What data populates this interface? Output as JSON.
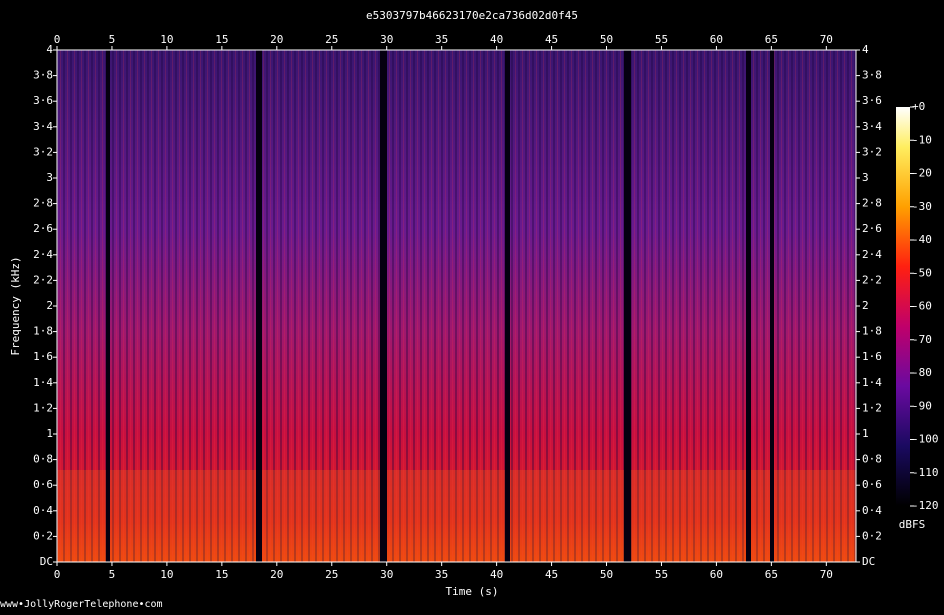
{
  "chart_data": {
    "type": "spectrogram",
    "title": "e5303797b46623170e2ca736d02d0f45",
    "x_label": "Time (s)",
    "y_label": "Frequency (kHz)",
    "xlim": [
      0,
      72.7
    ],
    "xticks": [
      0,
      5,
      10,
      15,
      20,
      25,
      30,
      35,
      40,
      45,
      50,
      55,
      60,
      65,
      70
    ],
    "ylim": [
      0,
      4
    ],
    "yticks": [
      {
        "value": 0,
        "label": "DC"
      },
      {
        "value": 0.2,
        "label": "0·2"
      },
      {
        "value": 0.4,
        "label": "0·4"
      },
      {
        "value": 0.6,
        "label": "0·6"
      },
      {
        "value": 0.8,
        "label": "0·8"
      },
      1,
      {
        "value": 1.2,
        "label": "1·2"
      },
      {
        "value": 1.4,
        "label": "1·4"
      },
      {
        "value": 1.6,
        "label": "1·6"
      },
      {
        "value": 1.8,
        "label": "1·8"
      },
      2,
      {
        "value": 2.2,
        "label": "2·2"
      },
      {
        "value": 2.4,
        "label": "2·4"
      },
      {
        "value": 2.6,
        "label": "2·6"
      },
      {
        "value": 2.8,
        "label": "2·8"
      },
      3,
      {
        "value": 3.2,
        "label": "3·2"
      },
      {
        "value": 3.4,
        "label": "3·4"
      },
      {
        "value": 3.6,
        "label": "3·6"
      },
      {
        "value": 3.8,
        "label": "3·8"
      },
      4
    ],
    "colorbar": {
      "label": "dBFS",
      "lim": [
        -120,
        0
      ],
      "ticks": [
        {
          "value": 0,
          "label": "+0"
        },
        -10,
        -20,
        -30,
        -40,
        -50,
        -60,
        -70,
        -80,
        -90,
        -100,
        -110,
        -120
      ]
    },
    "footer": "www•JollyRogerTelephone•com"
  }
}
